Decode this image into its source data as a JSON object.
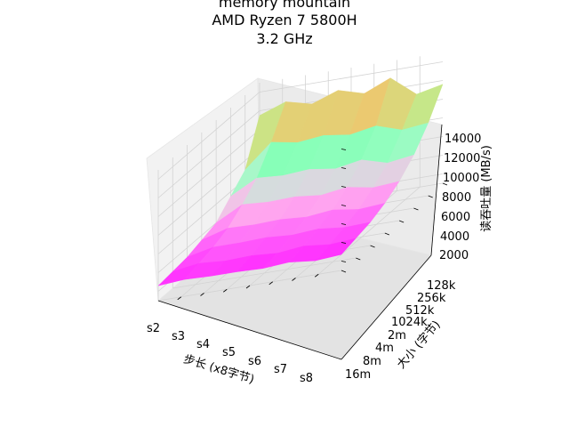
{
  "chart_data": {
    "type": "surface3d",
    "title_lines": [
      "memory mountain",
      "AMD Ryzen 7 5800H",
      "3.2 GHz"
    ],
    "xlabel": "步长 (x8字节)",
    "ylabel": "大小 (字节)",
    "zlabel": "读吞吐量 (MB/s)",
    "x_ticks": [
      "s2",
      "s3",
      "s4",
      "s5",
      "s6",
      "s7",
      "s8"
    ],
    "y_ticks": [
      "128k",
      "256k",
      "512k",
      "1024k",
      "2m",
      "4m",
      "8m",
      "16m"
    ],
    "z_ticks": [
      "2000",
      "4000",
      "6000",
      "8000",
      "10000",
      "12000",
      "14000"
    ],
    "zlim": [
      1000,
      15000
    ],
    "colormap": "rainbow",
    "strides": [
      1,
      2,
      3,
      4,
      5,
      6,
      7,
      8
    ],
    "sizes": [
      "128k",
      "256k",
      "512k",
      "1024k",
      "2m",
      "4m",
      "8m",
      "16m"
    ],
    "throughput": [
      [
        11500,
        7000,
        5500,
        4000,
        3500,
        3000,
        2800,
        2600
      ],
      [
        12500,
        9500,
        7000,
        5500,
        4300,
        3600,
        3200,
        2800
      ],
      [
        11800,
        9000,
        6800,
        5300,
        4200,
        3600,
        3000,
        2700
      ],
      [
        12800,
        9300,
        7000,
        5400,
        4300,
        3700,
        3100,
        2700
      ],
      [
        12000,
        8900,
        6600,
        5100,
        4100,
        3500,
        2900,
        2600
      ],
      [
        13200,
        9400,
        7100,
        5500,
        4400,
        3700,
        3200,
        2800
      ],
      [
        11000,
        8500,
        6300,
        5000,
        4000,
        3400,
        2900,
        2500
      ],
      [
        11600,
        8800,
        6700,
        5200,
        4200,
        3500,
        3100,
        2700
      ]
    ]
  }
}
